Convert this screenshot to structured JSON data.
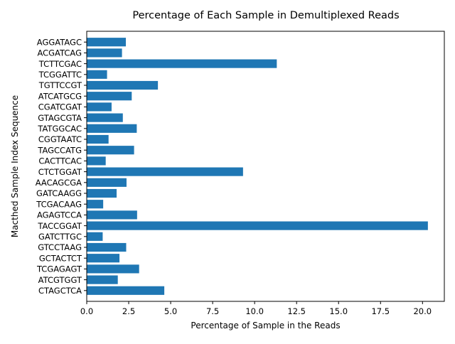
{
  "chart_data": {
    "type": "bar",
    "orientation": "horizontal",
    "title": "Percentage of Each Sample in Demultiplexed Reads",
    "xlabel": "Percentage of Sample in the Reads",
    "ylabel": "Macthed Sample Index Sequence",
    "xlim": [
      0,
      21.3
    ],
    "xticks": [
      0,
      2.5,
      5,
      7.5,
      10,
      12.5,
      15,
      17.5,
      20
    ],
    "xtick_labels": [
      "0.0",
      "2.5",
      "5.0",
      "7.5",
      "10.0",
      "12.5",
      "15.0",
      "17.5",
      "20.0"
    ],
    "grid": false,
    "bar_color": "#1f77b4",
    "categories": [
      "CTAGCTCA",
      "ATCGTGGT",
      "TCGAGAGT",
      "GCTACTCT",
      "GTCCTAAG",
      "GATCTTGC",
      "TACCGGAT",
      "AGAGTCCA",
      "TCGACAAG",
      "GATCAAGG",
      "AACAGCGA",
      "CTCTGGAT",
      "CACTTCAC",
      "TAGCCATG",
      "CGGTAATC",
      "TATGGCAC",
      "GTAGCGTA",
      "CGATCGAT",
      "ATCATGCG",
      "TGTTCCGT",
      "TCGGATTC",
      "TCTTCGAC",
      "ACGATCAG",
      "AGGATAGC"
    ],
    "values": [
      4.62,
      1.85,
      3.12,
      1.95,
      2.35,
      0.95,
      20.32,
      3.0,
      0.98,
      1.78,
      2.37,
      9.31,
      1.13,
      2.82,
      1.3,
      2.98,
      2.15,
      1.48,
      2.68,
      4.24,
      1.21,
      11.32,
      2.1,
      2.33
    ]
  }
}
